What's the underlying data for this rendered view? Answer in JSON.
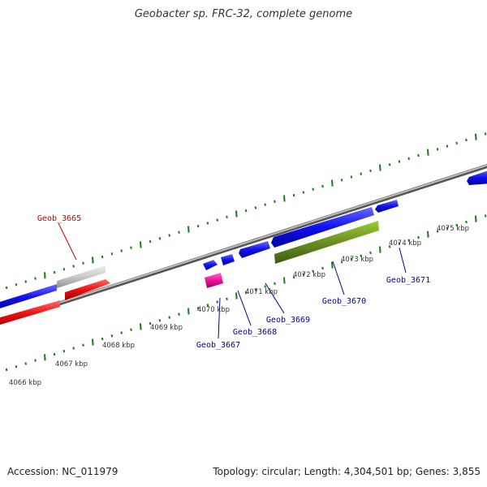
{
  "title": "Geobacter sp. FRC-32, complete genome",
  "footer": {
    "accession": "Accession: NC_011979",
    "stats": "Topology: circular; Length: 4,304,501 bp; Genes: 3,855"
  },
  "axis_labels": [
    "4066 kbp",
    "4067 kbp",
    "4068 kbp",
    "4069 kbp",
    "4070 kbp",
    "4071 kbp",
    "4072 kbp",
    "4073 kbp",
    "4074 kbp",
    "4075 kbp"
  ],
  "genes": [
    {
      "name": "Geob_3665",
      "color": "#cc0000"
    },
    {
      "name": "Geob_3667",
      "color": "#0000aa"
    },
    {
      "name": "Geob_3668",
      "color": "#0000aa"
    },
    {
      "name": "Geob_3669",
      "color": "#0000aa"
    },
    {
      "name": "Geob_3670",
      "color": "#0000aa"
    },
    {
      "name": "Geob_3671",
      "color": "#0000aa"
    }
  ],
  "colors": {
    "backbone": "#888888",
    "ticks": "#1a7a1a",
    "blue_feature": "#0a0aee",
    "red_feature": "#ee0a0a",
    "gray_feature": "#c8c8c8",
    "green_feature": "#6b8e23",
    "magenta_feature": "#ee1199"
  }
}
